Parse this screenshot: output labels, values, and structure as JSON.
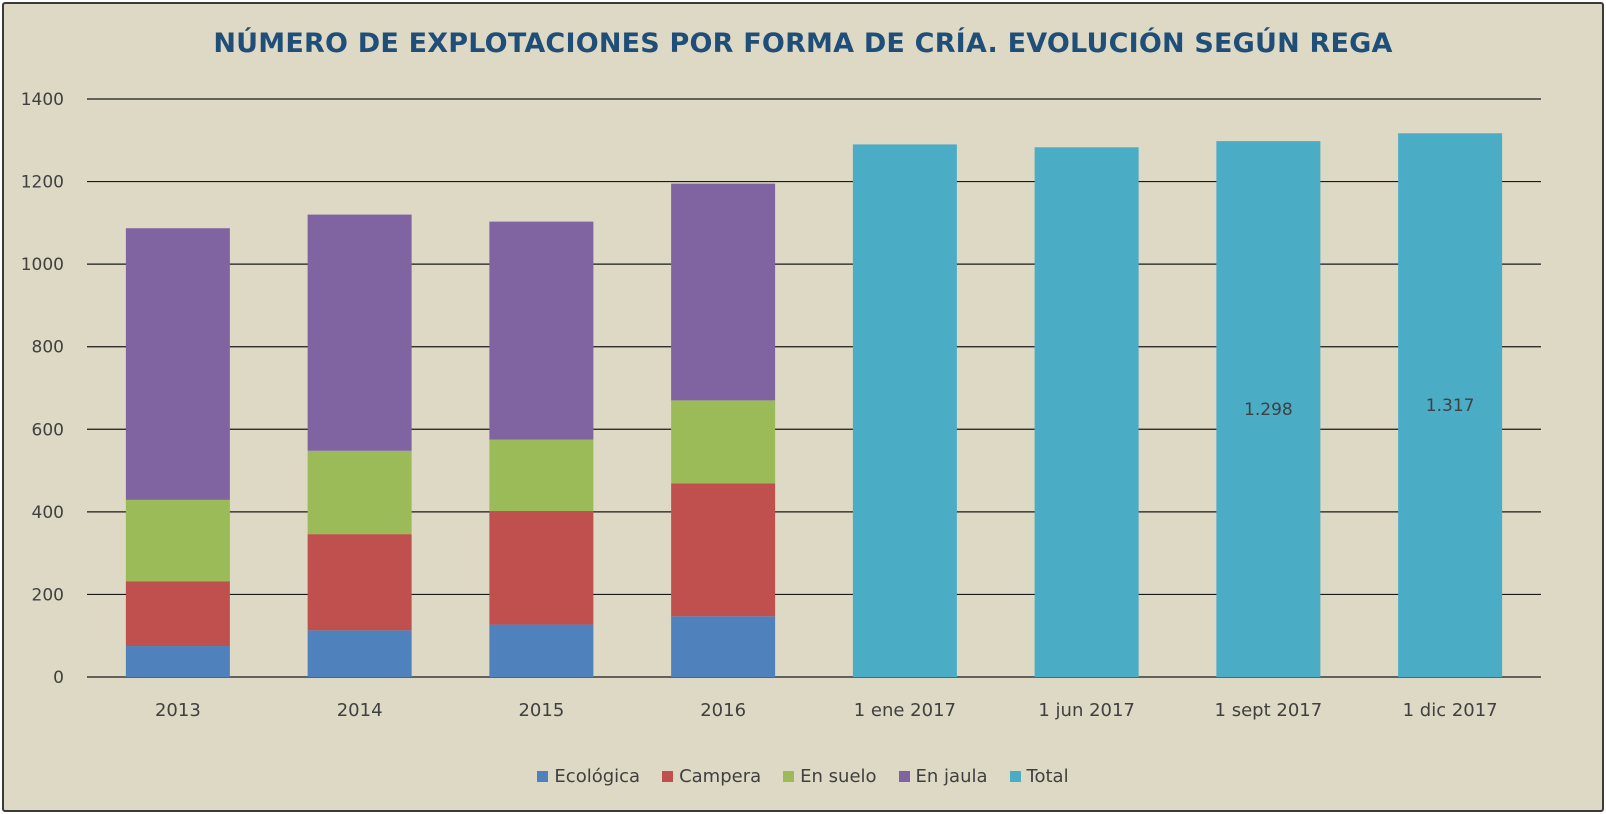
{
  "chart_data": {
    "type": "bar",
    "stacked": true,
    "title": "NÚMERO DE EXPLOTACIONES POR FORMA DE CRÍA. EVOLUCIÓN SEGÚN REGA",
    "xlabel": "",
    "ylabel": "",
    "ylim": [
      0,
      1400
    ],
    "yticks": [
      "0",
      "200",
      "400",
      "600",
      "800",
      "1000",
      "1200",
      "1400"
    ],
    "grid": true,
    "legend_position": "bottom",
    "categories": [
      "2013",
      "2014",
      "2015",
      "2016",
      "1 ene 2017",
      "1 jun 2017",
      "1 sept 2017",
      "1 dic 2017"
    ],
    "series": [
      {
        "name": "Ecológica",
        "color": "#4f81bd",
        "values": [
          75,
          113,
          127,
          147,
          null,
          null,
          null,
          null
        ]
      },
      {
        "name": "Campera",
        "color": "#c0504d",
        "values": [
          157,
          233,
          275,
          322,
          null,
          null,
          null,
          null
        ]
      },
      {
        "name": "En suelo",
        "color": "#9bbb59",
        "values": [
          197,
          202,
          173,
          201,
          null,
          null,
          null,
          null
        ]
      },
      {
        "name": "En jaula",
        "color": "#8064a2",
        "values": [
          658,
          572,
          528,
          525,
          null,
          null,
          null,
          null
        ]
      },
      {
        "name": "Total",
        "color": "#4bacc6",
        "values": [
          null,
          null,
          null,
          null,
          1290,
          1283,
          1298,
          1317
        ]
      }
    ],
    "data_labels": [
      {
        "category": "1 sept 2017",
        "text": "1.298"
      },
      {
        "category": "1 dic 2017",
        "text": "1.317"
      }
    ]
  }
}
